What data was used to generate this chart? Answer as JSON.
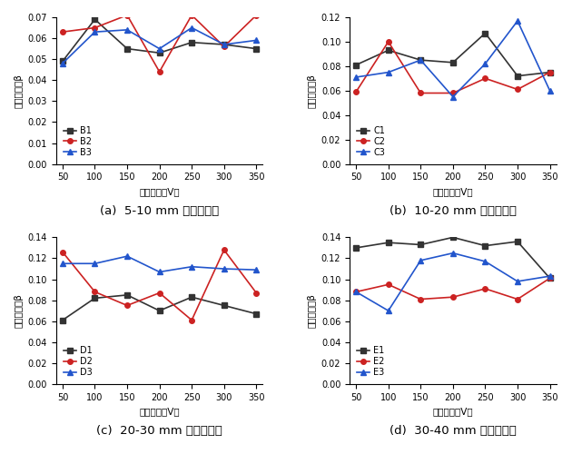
{
  "x": [
    50,
    100,
    150,
    200,
    250,
    300,
    350
  ],
  "subplots": [
    {
      "label": "(a)  5-10 mm 粗骨料粒径",
      "series": [
        {
          "name": "B1",
          "color": "#333333",
          "marker": "s",
          "values": [
            0.049,
            0.069,
            0.055,
            0.053,
            0.058,
            0.057,
            0.055
          ]
        },
        {
          "name": "B2",
          "color": "#cc2222",
          "marker": "o",
          "values": [
            0.063,
            0.065,
            0.071,
            0.044,
            0.071,
            0.056,
            0.071
          ]
        },
        {
          "name": "B3",
          "color": "#2255cc",
          "marker": "^",
          "values": [
            0.048,
            0.063,
            0.064,
            0.055,
            0.065,
            0.057,
            0.059
          ]
        }
      ],
      "ylim": [
        0,
        0.07
      ],
      "yticks": [
        0.0,
        0.01,
        0.02,
        0.03,
        0.04,
        0.05,
        0.06,
        0.07
      ],
      "legend_loc": "lower left"
    },
    {
      "label": "(b)  10-20 mm 粗骨料粒径",
      "series": [
        {
          "name": "C1",
          "color": "#333333",
          "marker": "s",
          "values": [
            0.081,
            0.093,
            0.085,
            0.083,
            0.107,
            0.072,
            0.075
          ]
        },
        {
          "name": "C2",
          "color": "#cc2222",
          "marker": "o",
          "values": [
            0.059,
            0.1,
            0.058,
            0.058,
            0.07,
            0.061,
            0.075
          ]
        },
        {
          "name": "C3",
          "color": "#2255cc",
          "marker": "^",
          "values": [
            0.071,
            0.075,
            0.085,
            0.055,
            0.082,
            0.117,
            0.06
          ]
        }
      ],
      "ylim": [
        0,
        0.12
      ],
      "yticks": [
        0.0,
        0.02,
        0.04,
        0.06,
        0.08,
        0.1,
        0.12
      ],
      "legend_loc": "lower left"
    },
    {
      "label": "(c)  20-30 mm 粗骨料粒径",
      "series": [
        {
          "name": "D1",
          "color": "#333333",
          "marker": "s",
          "values": [
            0.061,
            0.082,
            0.085,
            0.07,
            0.083,
            0.075,
            0.067
          ]
        },
        {
          "name": "D2",
          "color": "#cc2222",
          "marker": "o",
          "values": [
            0.126,
            0.088,
            0.075,
            0.087,
            0.061,
            0.128,
            0.087
          ]
        },
        {
          "name": "D3",
          "color": "#2255cc",
          "marker": "^",
          "values": [
            0.115,
            0.115,
            0.122,
            0.107,
            0.112,
            0.11,
            0.109
          ]
        }
      ],
      "ylim": [
        0,
        0.14
      ],
      "yticks": [
        0.0,
        0.02,
        0.04,
        0.06,
        0.08,
        0.1,
        0.12,
        0.14
      ],
      "legend_loc": "lower left"
    },
    {
      "label": "(d)  30-40 mm 粗骨料粒径",
      "series": [
        {
          "name": "E1",
          "color": "#333333",
          "marker": "s",
          "values": [
            0.13,
            0.135,
            0.133,
            0.14,
            0.132,
            0.136,
            0.101
          ]
        },
        {
          "name": "E2",
          "color": "#cc2222",
          "marker": "o",
          "values": [
            0.088,
            0.095,
            0.081,
            0.083,
            0.091,
            0.081,
            0.101
          ]
        },
        {
          "name": "E3",
          "color": "#2255cc",
          "marker": "^",
          "values": [
            0.088,
            0.07,
            0.118,
            0.125,
            0.117,
            0.098,
            0.103
          ]
        }
      ],
      "ylim": [
        0,
        0.14
      ],
      "yticks": [
        0.0,
        0.02,
        0.04,
        0.06,
        0.08,
        0.1,
        0.12,
        0.14
      ],
      "legend_loc": "lower left"
    }
  ],
  "xlabel": "激励电压（V）",
  "ylabel": "非线性参数β",
  "background_color": "#ffffff",
  "line_width": 1.2,
  "marker_size": 4,
  "tick_fontsize": 7,
  "label_fontsize": 7.5,
  "caption_fontsize": 9.5,
  "legend_fontsize": 7
}
